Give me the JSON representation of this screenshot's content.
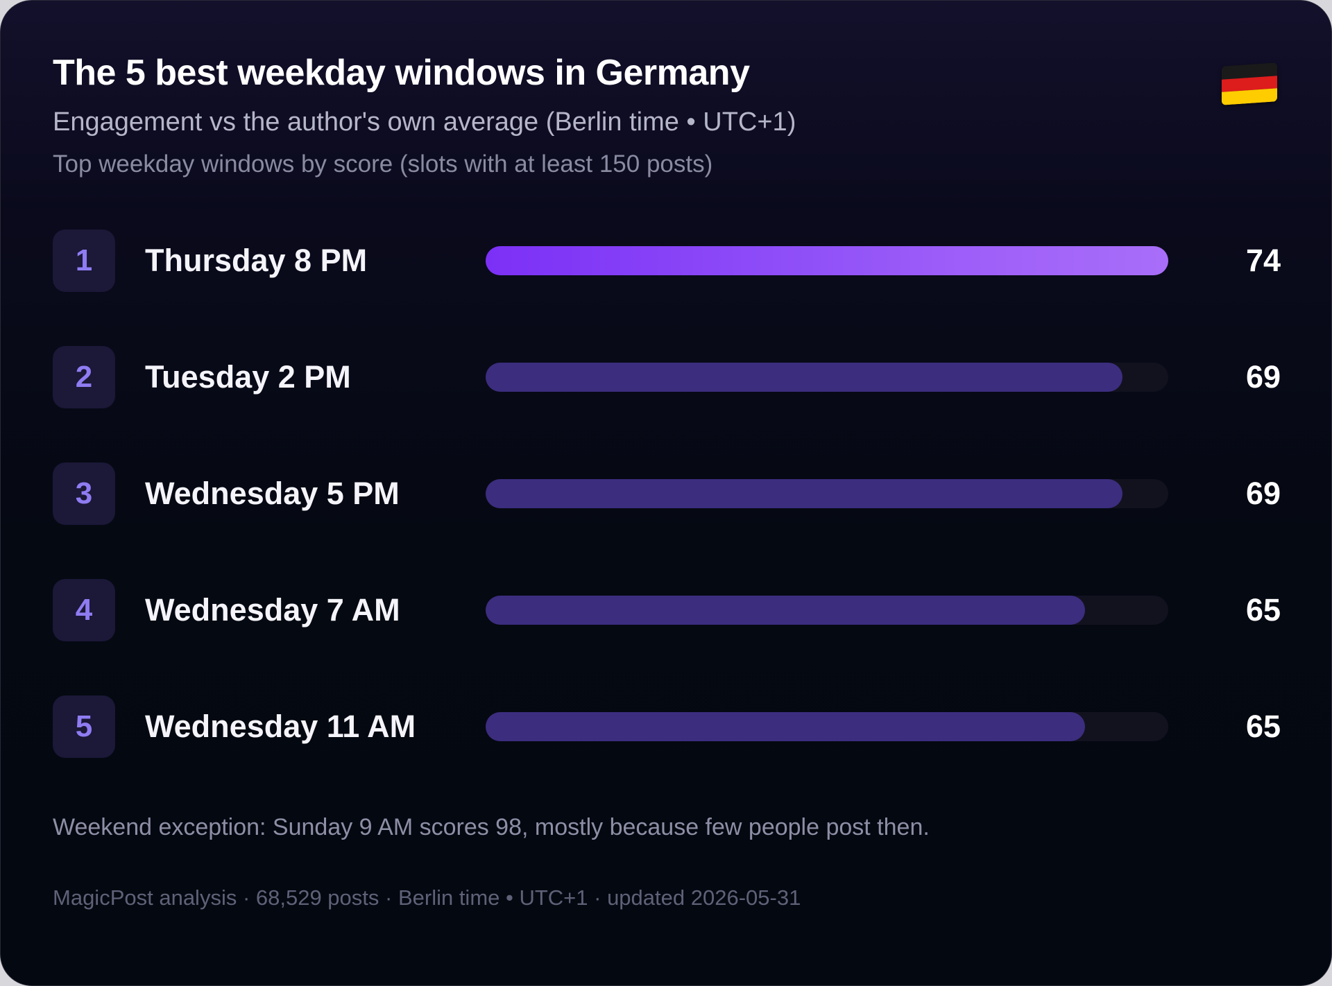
{
  "header": {
    "title": "The 5 best weekday windows in Germany",
    "subtitle": "Engagement vs the author's own average (Berlin time • UTC+1)",
    "caption": "Top weekday windows by score (slots with at least 150 posts)",
    "flag_icon": "germany-flag-icon"
  },
  "chart_data": {
    "type": "bar",
    "orientation": "horizontal",
    "categories": [
      "Thursday 8 PM",
      "Tuesday 2 PM",
      "Wednesday 5 PM",
      "Wednesday 7 AM",
      "Wednesday 11 AM"
    ],
    "ranks": [
      "1",
      "2",
      "3",
      "4",
      "5"
    ],
    "values": [
      74,
      69,
      69,
      65,
      65
    ],
    "xlim": [
      0,
      74
    ],
    "grid": false,
    "legend": "none"
  },
  "colors": {
    "top_bar": "#7c30f6",
    "bar": "#3c2d7f",
    "track": "#12121f",
    "rank_text": "#8f7cf2"
  },
  "note": "Weekend exception: Sunday 9 AM scores 98, mostly because few people post then.",
  "footer": "MagicPost analysis · 68,529 posts · Berlin time • UTC+1 · updated 2026-05-31"
}
